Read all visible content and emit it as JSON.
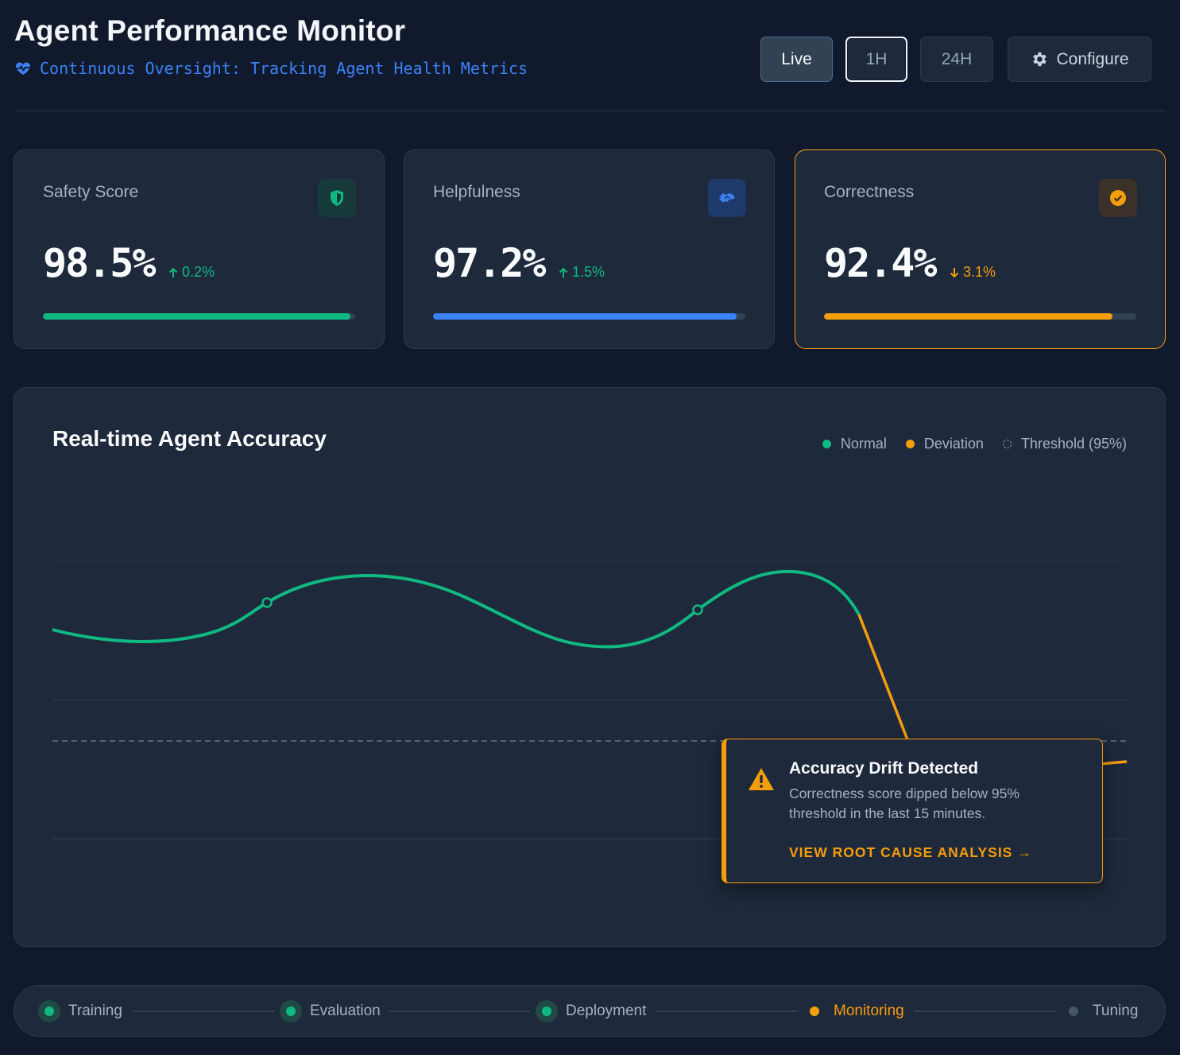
{
  "header": {
    "title": "Agent Performance Monitor",
    "subtitle": "Continuous Oversight: Tracking Agent Health Metrics",
    "controls": {
      "live": "Live",
      "one_hour": "1H",
      "day": "24H",
      "configure": "Configure"
    }
  },
  "metrics": [
    {
      "label": "Safety Score",
      "value": "98.5%",
      "delta": "0.2%",
      "direction": "up",
      "progress": 0.985,
      "color": "#10b981",
      "icon": "shield-icon"
    },
    {
      "label": "Helpfulness",
      "value": "97.2%",
      "delta": "1.5%",
      "direction": "up",
      "progress": 0.972,
      "color": "#3b82f6",
      "icon": "handshake-icon"
    },
    {
      "label": "Correctness",
      "value": "92.4%",
      "delta": "3.1%",
      "direction": "down",
      "progress": 0.924,
      "color": "#f59e0b",
      "icon": "check-circle-icon"
    }
  ],
  "chart": {
    "title": "Real-time Agent Accuracy",
    "legend": {
      "normal": "Normal",
      "deviation": "Deviation",
      "threshold": "Threshold (95%)"
    }
  },
  "chart_data": {
    "type": "line",
    "title": "Real-time Agent Accuracy",
    "threshold": 95,
    "ylim": [
      92,
      99
    ],
    "series": [
      {
        "name": "Normal",
        "x": [
          0,
          6,
          10,
          20,
          25,
          29,
          34,
          40,
          43,
          45.5
        ],
        "y": [
          97.5,
          97.4,
          97.9,
          98.3,
          97.9,
          97.2,
          97.7,
          98.4,
          98.3,
          97.7
        ]
      },
      {
        "name": "Deviation",
        "x": [
          45.5,
          48,
          55,
          62
        ],
        "y": [
          97.7,
          96.0,
          95.0,
          95.1
        ]
      }
    ],
    "colors": {
      "normal": "#10b981",
      "deviation": "#f59e0b",
      "threshold": "#64748b"
    }
  },
  "alert": {
    "title": "Accuracy Drift Detected",
    "description": "Correctness score dipped below 95% threshold in the last 15 minutes.",
    "link": "VIEW ROOT CAUSE ANALYSIS →"
  },
  "pipeline": {
    "steps": [
      {
        "label": "Training",
        "state": "done"
      },
      {
        "label": "Evaluation",
        "state": "done"
      },
      {
        "label": "Deployment",
        "state": "done"
      },
      {
        "label": "Monitoring",
        "state": "current"
      },
      {
        "label": "Tuning",
        "state": "future"
      }
    ]
  }
}
